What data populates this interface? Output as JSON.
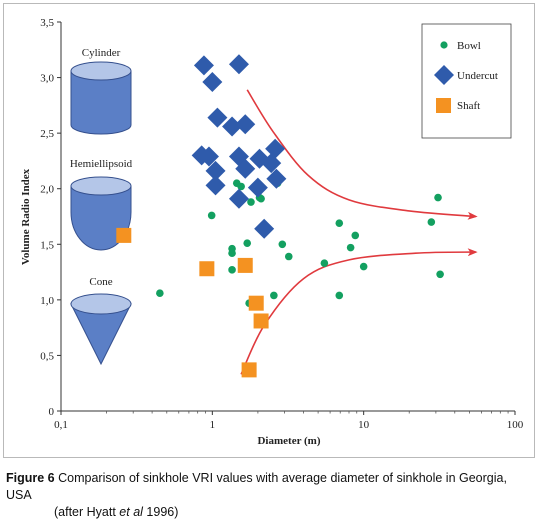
{
  "chart_data": {
    "type": "scatter",
    "xscale": "log",
    "xlim": [
      0.1,
      100
    ],
    "ylim": [
      0,
      3.5
    ],
    "xticks": [
      "0,1",
      "1",
      "10",
      "100"
    ],
    "yticks": [
      "0",
      "0,5",
      "1,0",
      "1,5",
      "2,0",
      "2,5",
      "3,0",
      "3,5"
    ],
    "xlabel": "Diameter (m)",
    "ylabel": "Volume Radio Index",
    "grid": false,
    "legend_position": "top-right",
    "series": [
      {
        "name": "Bowl",
        "marker": "circle",
        "color": "#13a060",
        "points": [
          [
            0.45,
            1.06
          ],
          [
            0.99,
            1.76
          ],
          [
            1.35,
            1.46
          ],
          [
            1.35,
            1.42
          ],
          [
            1.35,
            1.27
          ],
          [
            1.45,
            2.05
          ],
          [
            1.55,
            2.02
          ],
          [
            1.7,
            1.51
          ],
          [
            1.75,
            0.97
          ],
          [
            1.8,
            1.88
          ],
          [
            1.9,
            2.01
          ],
          [
            2.05,
            1.92
          ],
          [
            2.1,
            1.91
          ],
          [
            2.55,
            1.04
          ],
          [
            2.7,
            2.05
          ],
          [
            2.9,
            1.5
          ],
          [
            3.2,
            1.39
          ],
          [
            5.5,
            1.33
          ],
          [
            6.9,
            1.69
          ],
          [
            6.9,
            1.04
          ],
          [
            8.2,
            1.47
          ],
          [
            8.8,
            1.58
          ],
          [
            10.0,
            1.3
          ],
          [
            28.0,
            1.7
          ],
          [
            31.0,
            1.92
          ],
          [
            32.0,
            1.23
          ]
        ]
      },
      {
        "name": "Undercut",
        "marker": "diamond",
        "color": "#2f5bab",
        "points": [
          [
            0.88,
            3.11
          ],
          [
            1.5,
            3.12
          ],
          [
            1.0,
            2.96
          ],
          [
            1.08,
            2.64
          ],
          [
            1.35,
            2.56
          ],
          [
            1.65,
            2.58
          ],
          [
            0.85,
            2.3
          ],
          [
            0.95,
            2.29
          ],
          [
            1.5,
            2.29
          ],
          [
            2.05,
            2.27
          ],
          [
            2.6,
            2.36
          ],
          [
            1.05,
            2.16
          ],
          [
            1.65,
            2.18
          ],
          [
            2.45,
            2.23
          ],
          [
            1.05,
            2.03
          ],
          [
            2.0,
            2.01
          ],
          [
            2.65,
            2.09
          ],
          [
            1.5,
            1.91
          ],
          [
            2.2,
            1.64
          ]
        ]
      },
      {
        "name": "Shaft",
        "marker": "square",
        "color": "#f49221",
        "points": [
          [
            0.26,
            1.58
          ],
          [
            0.92,
            1.28
          ],
          [
            1.65,
            1.31
          ],
          [
            1.95,
            0.97
          ],
          [
            2.1,
            0.81
          ],
          [
            1.75,
            0.37
          ]
        ]
      }
    ],
    "annotations": [
      "Cylinder",
      "Hemiellipsoid",
      "Cone"
    ],
    "trend_arrows": [
      {
        "points": [
          [
            1.7,
            2.89
          ],
          [
            2.5,
            2.52
          ],
          [
            4.3,
            2.12
          ],
          [
            8.0,
            1.9
          ],
          [
            20.0,
            1.8
          ],
          [
            55.0,
            1.75
          ]
        ]
      },
      {
        "points": [
          [
            1.55,
            0.33
          ],
          [
            2.2,
            0.77
          ],
          [
            4.0,
            1.19
          ],
          [
            8.0,
            1.36
          ],
          [
            22.0,
            1.42
          ],
          [
            55.0,
            1.43
          ]
        ]
      }
    ],
    "colors": {
      "arrow": "#e03a3e",
      "shape_fill": "#5b7fc6",
      "shape_top": "#b4c6e8",
      "shape_stroke": "#35508e"
    }
  },
  "caption": {
    "label": "Figure 6",
    "text_line1": "Comparison of sinkhole VRI values with average diameter of sinkhole in Georgia, USA",
    "text_line2_pre": "(after Hyatt ",
    "text_line2_italic": "et al",
    "text_line2_post": " 1996)"
  }
}
